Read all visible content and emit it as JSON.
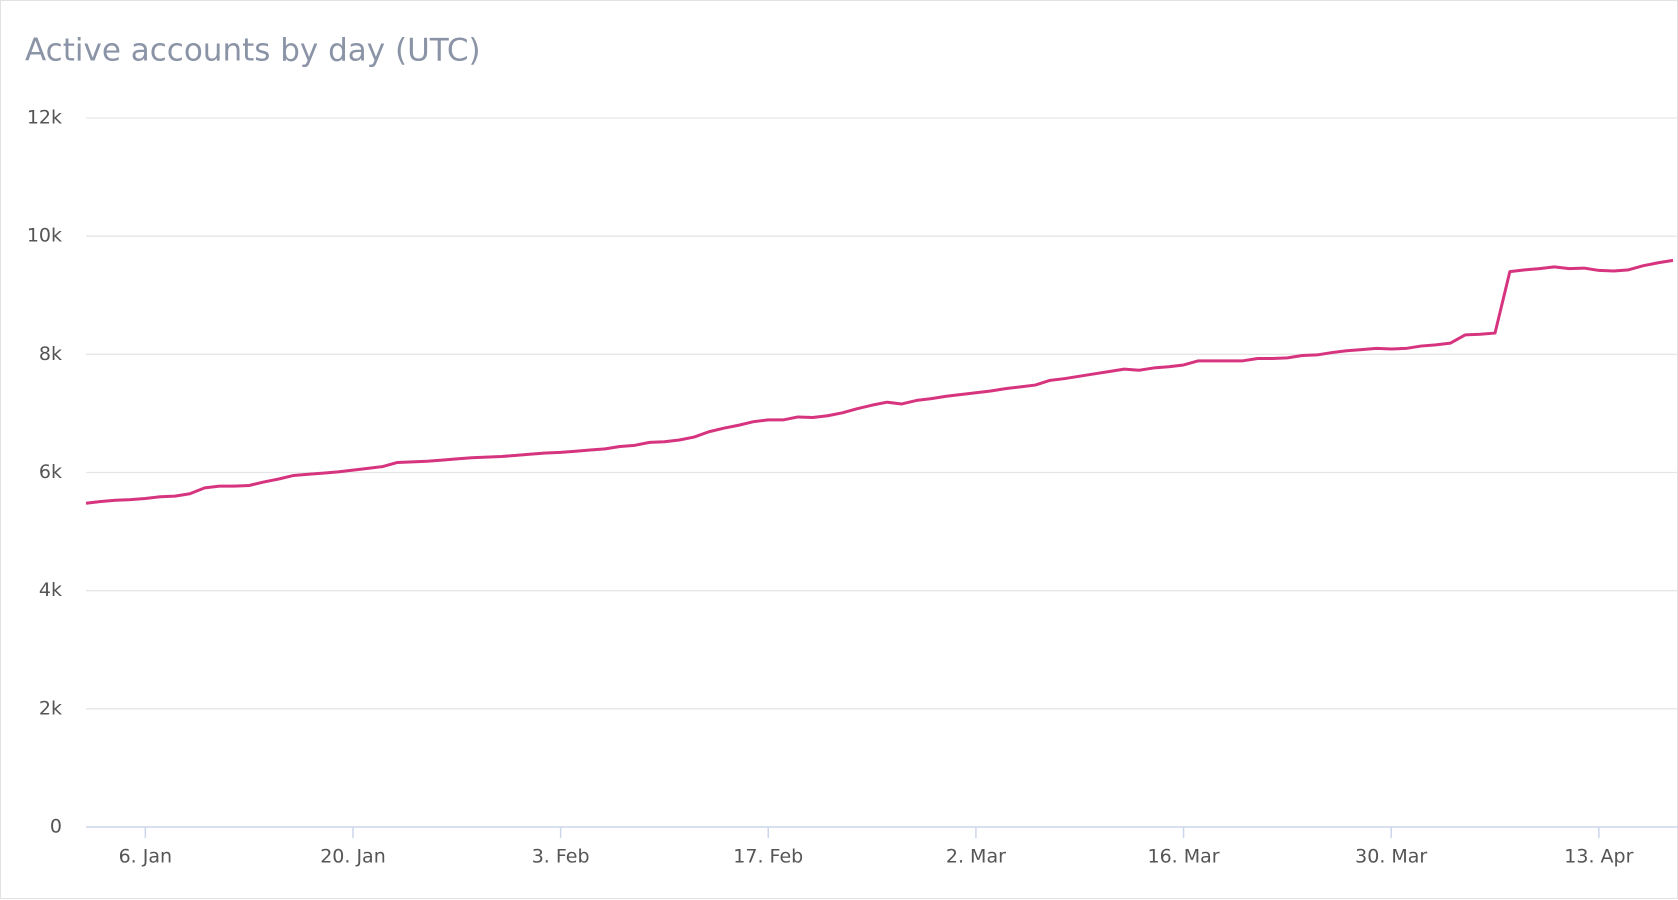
{
  "chart_data": {
    "type": "line",
    "title": "Active accounts by day (UTC)",
    "categories": [
      null,
      null,
      null,
      null,
      "6. Jan",
      null,
      null,
      null,
      null,
      null,
      null,
      null,
      null,
      null,
      null,
      null,
      null,
      null,
      "20. Jan",
      null,
      null,
      null,
      null,
      null,
      null,
      null,
      null,
      null,
      null,
      null,
      null,
      null,
      "3. Feb",
      null,
      null,
      null,
      null,
      null,
      null,
      null,
      null,
      null,
      null,
      null,
      null,
      null,
      "17. Feb",
      null,
      null,
      null,
      null,
      null,
      null,
      null,
      null,
      null,
      null,
      null,
      null,
      null,
      "2. Mar",
      null,
      null,
      null,
      null,
      null,
      null,
      null,
      null,
      null,
      null,
      null,
      null,
      null,
      "16. Mar",
      null,
      null,
      null,
      null,
      null,
      null,
      null,
      null,
      null,
      null,
      null,
      null,
      null,
      "30. Mar",
      null,
      null,
      null,
      null,
      null,
      null,
      null,
      null,
      null,
      null,
      null,
      null,
      null,
      "13. Apr",
      null,
      null,
      null,
      null,
      null
    ],
    "series": [
      {
        "color": "#d6347f",
        "values": [
          5480,
          5510,
          5530,
          5540,
          5560,
          5590,
          5600,
          5640,
          5740,
          5770,
          5770,
          5780,
          5840,
          5890,
          5950,
          5970,
          5990,
          6010,
          6040,
          6070,
          6100,
          6170,
          6180,
          6190,
          6210,
          6230,
          6250,
          6260,
          6270,
          6290,
          6310,
          6330,
          6340,
          6360,
          6380,
          6400,
          6440,
          6460,
          6510,
          6520,
          6550,
          6600,
          6690,
          6750,
          6800,
          6860,
          6890,
          6890,
          6940,
          6930,
          6960,
          7010,
          7080,
          7140,
          7190,
          7160,
          7220,
          7250,
          7290,
          7320,
          7350,
          7380,
          7420,
          7450,
          7480,
          7560,
          7590,
          7630,
          7670,
          7710,
          7750,
          7730,
          7770,
          7790,
          7820,
          7890,
          7890,
          7890,
          7890,
          7930,
          7930,
          7940,
          7980,
          7990,
          8030,
          8060,
          8080,
          8100,
          8090,
          8100,
          8140,
          8160,
          8190,
          8330,
          8340,
          8360,
          9400,
          9430,
          9450,
          9480,
          9450,
          9460,
          9420,
          9410,
          9430,
          9500,
          9550,
          9590
        ]
      }
    ],
    "ylim": [
      0,
      12000
    ],
    "yticks": [
      0,
      {
        "value": 2000,
        "label": "2k"
      },
      {
        "value": 4000,
        "label": "4k"
      },
      {
        "value": 6000,
        "label": "6k"
      },
      {
        "value": 8000,
        "label": "8k"
      },
      {
        "value": 10000,
        "label": "10k"
      },
      {
        "value": 12000,
        "label": "12k"
      }
    ],
    "grid": true
  }
}
